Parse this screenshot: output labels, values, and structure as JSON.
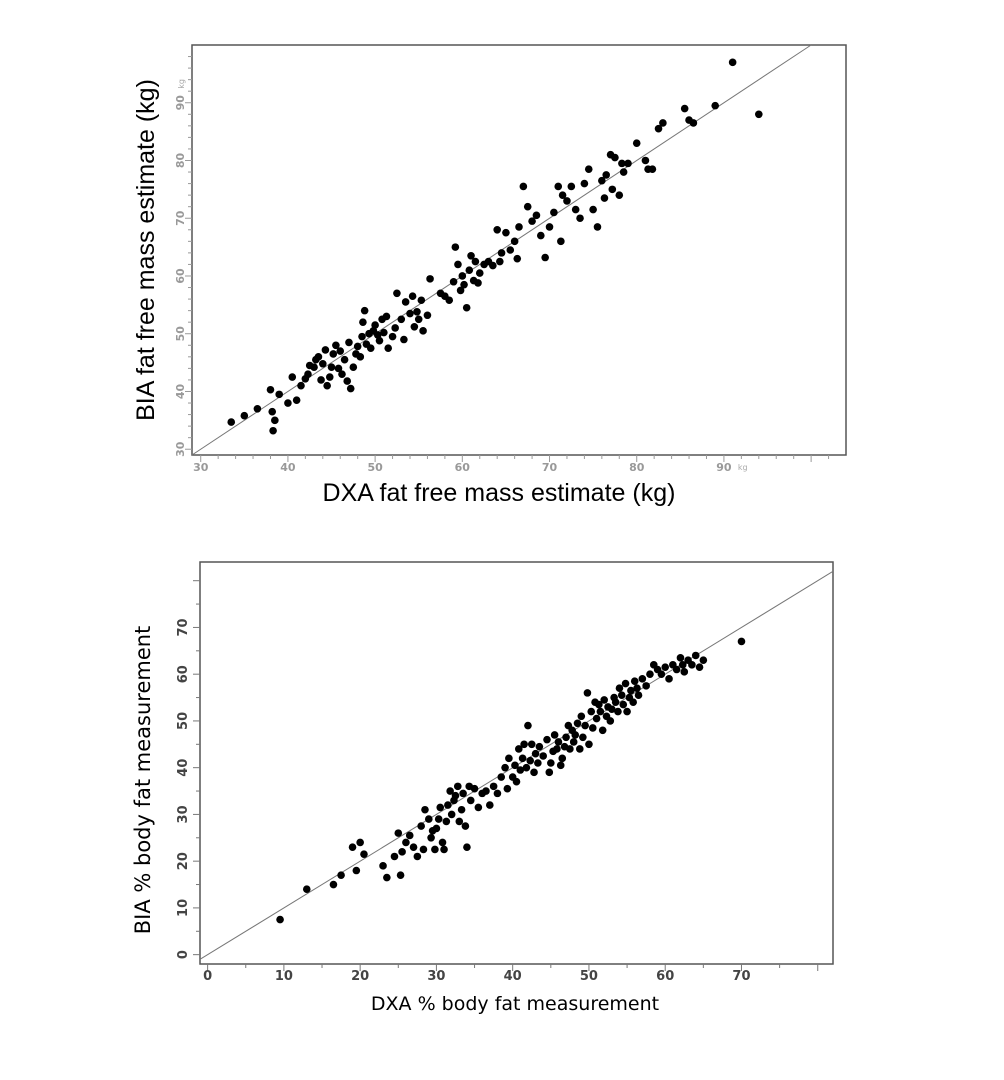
{
  "chart_data": [
    {
      "type": "scatter",
      "xlabel": "DXA fat free mass estimate (kg)",
      "ylabel": "BIA fat free mass estimate (kg)",
      "xlim": [
        29,
        104
      ],
      "ylim": [
        29,
        100
      ],
      "x_ticks": [
        30,
        40,
        50,
        60,
        70,
        80,
        90
      ],
      "y_ticks": [
        30,
        40,
        50,
        60,
        70,
        80,
        90
      ],
      "tick_unit": "kg",
      "x_tick_labels": [
        "30",
        "40",
        "50",
        "60",
        "70",
        "80",
        "90"
      ],
      "y_tick_labels": [
        "30",
        "40",
        "50",
        "60",
        "70",
        "80",
        "90"
      ],
      "identity_line": true,
      "points": [
        [
          33.5,
          34.7
        ],
        [
          35,
          35.8
        ],
        [
          36.5,
          37
        ],
        [
          38,
          40.3
        ],
        [
          38.2,
          36.5
        ],
        [
          38.3,
          33.2
        ],
        [
          38.5,
          35
        ],
        [
          39,
          39.5
        ],
        [
          40,
          38
        ],
        [
          40.5,
          42.5
        ],
        [
          41,
          38.5
        ],
        [
          41.5,
          41
        ],
        [
          42,
          42.2
        ],
        [
          42.3,
          43
        ],
        [
          42.5,
          44.5
        ],
        [
          43,
          44.2
        ],
        [
          43.2,
          45.5
        ],
        [
          43.5,
          46
        ],
        [
          43.8,
          42
        ],
        [
          44,
          44.8
        ],
        [
          44.3,
          47.2
        ],
        [
          44.5,
          41
        ],
        [
          44.8,
          42.5
        ],
        [
          45,
          44.2
        ],
        [
          45.2,
          46.5
        ],
        [
          45.5,
          48
        ],
        [
          45.8,
          44
        ],
        [
          46,
          47
        ],
        [
          46.2,
          43
        ],
        [
          46.5,
          45.5
        ],
        [
          46.8,
          41.8
        ],
        [
          47,
          48.5
        ],
        [
          47.2,
          40.5
        ],
        [
          47.5,
          44.2
        ],
        [
          47.8,
          46.5
        ],
        [
          48,
          47.8
        ],
        [
          48.3,
          46
        ],
        [
          48.5,
          49.5
        ],
        [
          48.6,
          52
        ],
        [
          48.8,
          54
        ],
        [
          49,
          48.2
        ],
        [
          49.3,
          50
        ],
        [
          49.5,
          47.5
        ],
        [
          49.8,
          50.5
        ],
        [
          50,
          51.5
        ],
        [
          50.3,
          49.8
        ],
        [
          50.5,
          48.8
        ],
        [
          50.8,
          52.5
        ],
        [
          51,
          50.2
        ],
        [
          51.3,
          53
        ],
        [
          51.5,
          47.5
        ],
        [
          52,
          49.5
        ],
        [
          52.3,
          51
        ],
        [
          52.5,
          57
        ],
        [
          53,
          52.5
        ],
        [
          53.3,
          49
        ],
        [
          53.5,
          55.5
        ],
        [
          54,
          53.5
        ],
        [
          54.3,
          56.5
        ],
        [
          54.5,
          51.2
        ],
        [
          54.8,
          53.8
        ],
        [
          55,
          52.5
        ],
        [
          55.3,
          55.8
        ],
        [
          55.5,
          50.5
        ],
        [
          56,
          53.2
        ],
        [
          56.3,
          59.5
        ],
        [
          57.5,
          57
        ],
        [
          58,
          56.5
        ],
        [
          58.5,
          55.8
        ],
        [
          59,
          59
        ],
        [
          59.2,
          65
        ],
        [
          59.5,
          62
        ],
        [
          59.8,
          57.5
        ],
        [
          60,
          60
        ],
        [
          60.2,
          58.5
        ],
        [
          60.5,
          54.5
        ],
        [
          60.8,
          61
        ],
        [
          61,
          63.5
        ],
        [
          61.3,
          59.2
        ],
        [
          61.5,
          62.5
        ],
        [
          61.8,
          58.8
        ],
        [
          62,
          60.5
        ],
        [
          62.5,
          62
        ],
        [
          63,
          62.5
        ],
        [
          63.5,
          61.8
        ],
        [
          64,
          68
        ],
        [
          64.3,
          62.5
        ],
        [
          64.5,
          64
        ],
        [
          65,
          67.5
        ],
        [
          65.5,
          64.5
        ],
        [
          66,
          66
        ],
        [
          66.3,
          63
        ],
        [
          66.5,
          68.5
        ],
        [
          67,
          75.5
        ],
        [
          67.5,
          72
        ],
        [
          68,
          69.5
        ],
        [
          68.5,
          70.5
        ],
        [
          69,
          67
        ],
        [
          69.5,
          63.2
        ],
        [
          70,
          68.5
        ],
        [
          70.5,
          71
        ],
        [
          71,
          75.5
        ],
        [
          71.3,
          66
        ],
        [
          71.5,
          74
        ],
        [
          72,
          73
        ],
        [
          72.5,
          75.5
        ],
        [
          73,
          71.5
        ],
        [
          73.5,
          70
        ],
        [
          74,
          76
        ],
        [
          74.5,
          78.5
        ],
        [
          75,
          71.5
        ],
        [
          75.5,
          68.5
        ],
        [
          76,
          76.5
        ],
        [
          76.3,
          73.5
        ],
        [
          76.5,
          77.5
        ],
        [
          77,
          81
        ],
        [
          77.2,
          75
        ],
        [
          77.5,
          80.5
        ],
        [
          78,
          74
        ],
        [
          78.3,
          79.5
        ],
        [
          78.5,
          78
        ],
        [
          79,
          79.5
        ],
        [
          80,
          83
        ],
        [
          81,
          80
        ],
        [
          81.3,
          78.5
        ],
        [
          81.8,
          78.5
        ],
        [
          82.5,
          85.5
        ],
        [
          83,
          86.5
        ],
        [
          85.5,
          89
        ],
        [
          86,
          87
        ],
        [
          86.5,
          86.5
        ],
        [
          89,
          89.5
        ],
        [
          91,
          97
        ],
        [
          94,
          88
        ]
      ]
    },
    {
      "type": "scatter",
      "xlabel": "DXA % body fat measurement",
      "ylabel": "BIA % body fat measurement",
      "xlim": [
        -1,
        82
      ],
      "ylim": [
        -2,
        84
      ],
      "x_ticks": [
        0,
        10,
        20,
        30,
        40,
        50,
        60,
        70
      ],
      "y_ticks": [
        0,
        10,
        20,
        30,
        40,
        50,
        60,
        70
      ],
      "x_tick_labels": [
        "0",
        "10",
        "20",
        "30",
        "40",
        "50",
        "60",
        "70"
      ],
      "y_tick_labels": [
        "0",
        "10",
        "20",
        "30",
        "40",
        "50",
        "60",
        "70"
      ],
      "identity_line": true,
      "points": [
        [
          9.5,
          7.5
        ],
        [
          13,
          14
        ],
        [
          16.5,
          15
        ],
        [
          17.5,
          17
        ],
        [
          19,
          23
        ],
        [
          19.5,
          18
        ],
        [
          20,
          24
        ],
        [
          20.5,
          21.5
        ],
        [
          23,
          19
        ],
        [
          23.5,
          16.5
        ],
        [
          24.5,
          21
        ],
        [
          25,
          26
        ],
        [
          25.3,
          17
        ],
        [
          25.5,
          22
        ],
        [
          26,
          24
        ],
        [
          26.5,
          25.5
        ],
        [
          27,
          23
        ],
        [
          27.5,
          21
        ],
        [
          28,
          27.5
        ],
        [
          28.3,
          22.5
        ],
        [
          28.5,
          31
        ],
        [
          29,
          29
        ],
        [
          29.3,
          25
        ],
        [
          29.5,
          26.5
        ],
        [
          29.8,
          22.5
        ],
        [
          30,
          27
        ],
        [
          30.3,
          29
        ],
        [
          30.5,
          31.5
        ],
        [
          30.8,
          24
        ],
        [
          31,
          22.5
        ],
        [
          31.3,
          28.5
        ],
        [
          31.5,
          32
        ],
        [
          31.8,
          35
        ],
        [
          32,
          30
        ],
        [
          32.3,
          33
        ],
        [
          32.5,
          34
        ],
        [
          32.8,
          36
        ],
        [
          33,
          28.5
        ],
        [
          33.3,
          31
        ],
        [
          33.5,
          34.5
        ],
        [
          33.8,
          27.5
        ],
        [
          34,
          23
        ],
        [
          34.3,
          36
        ],
        [
          34.5,
          33
        ],
        [
          35,
          35.5
        ],
        [
          35.5,
          31.5
        ],
        [
          36,
          34.5
        ],
        [
          36.5,
          35
        ],
        [
          37,
          32
        ],
        [
          37.5,
          36
        ],
        [
          38,
          34.5
        ],
        [
          38.5,
          38
        ],
        [
          39,
          40
        ],
        [
          39.3,
          35.5
        ],
        [
          39.5,
          42
        ],
        [
          40,
          38
        ],
        [
          40.3,
          40.5
        ],
        [
          40.5,
          37
        ],
        [
          40.8,
          44
        ],
        [
          41,
          39.5
        ],
        [
          41.3,
          42
        ],
        [
          41.5,
          45
        ],
        [
          41.8,
          40
        ],
        [
          42,
          49
        ],
        [
          42.3,
          41.5
        ],
        [
          42.5,
          45
        ],
        [
          42.8,
          39
        ],
        [
          43,
          43
        ],
        [
          43.3,
          41
        ],
        [
          43.5,
          44.5
        ],
        [
          44,
          42.5
        ],
        [
          44.5,
          46
        ],
        [
          44.8,
          39
        ],
        [
          45,
          41
        ],
        [
          45.3,
          43.5
        ],
        [
          45.5,
          47
        ],
        [
          45.8,
          44
        ],
        [
          46,
          45.5
        ],
        [
          46.3,
          40.5
        ],
        [
          46.5,
          42
        ],
        [
          46.8,
          44.5
        ],
        [
          47,
          46.5
        ],
        [
          47.3,
          49
        ],
        [
          47.5,
          44
        ],
        [
          47.8,
          48
        ],
        [
          48,
          45.5
        ],
        [
          48.2,
          47
        ],
        [
          48.5,
          49.5
        ],
        [
          48.8,
          44
        ],
        [
          49,
          51
        ],
        [
          49.2,
          46.5
        ],
        [
          49.5,
          49
        ],
        [
          49.8,
          56
        ],
        [
          50,
          45
        ],
        [
          50.3,
          52
        ],
        [
          50.5,
          48.5
        ],
        [
          50.8,
          54
        ],
        [
          51,
          50.5
        ],
        [
          51.3,
          53.5
        ],
        [
          51.5,
          52
        ],
        [
          51.8,
          48
        ],
        [
          52,
          54.5
        ],
        [
          52.3,
          51
        ],
        [
          52.5,
          53
        ],
        [
          52.8,
          50
        ],
        [
          53,
          52.5
        ],
        [
          53.3,
          55
        ],
        [
          53.5,
          54
        ],
        [
          53.8,
          52
        ],
        [
          54,
          57
        ],
        [
          54.3,
          55.5
        ],
        [
          54.5,
          53.5
        ],
        [
          54.8,
          58
        ],
        [
          55,
          52
        ],
        [
          55.3,
          55
        ],
        [
          55.5,
          56.5
        ],
        [
          55.8,
          54
        ],
        [
          56,
          58.5
        ],
        [
          56.3,
          57
        ],
        [
          56.5,
          55.5
        ],
        [
          57,
          59
        ],
        [
          57.5,
          57.5
        ],
        [
          58,
          60
        ],
        [
          58.5,
          62
        ],
        [
          59,
          61
        ],
        [
          59.5,
          60
        ],
        [
          60,
          61.5
        ],
        [
          60.5,
          59
        ],
        [
          61,
          62
        ],
        [
          61.5,
          61
        ],
        [
          62,
          63.5
        ],
        [
          62.3,
          62
        ],
        [
          62.5,
          60.5
        ],
        [
          63,
          63
        ],
        [
          63.5,
          62
        ],
        [
          64,
          64
        ],
        [
          64.5,
          61.5
        ],
        [
          65,
          63
        ],
        [
          70,
          67
        ]
      ]
    }
  ]
}
